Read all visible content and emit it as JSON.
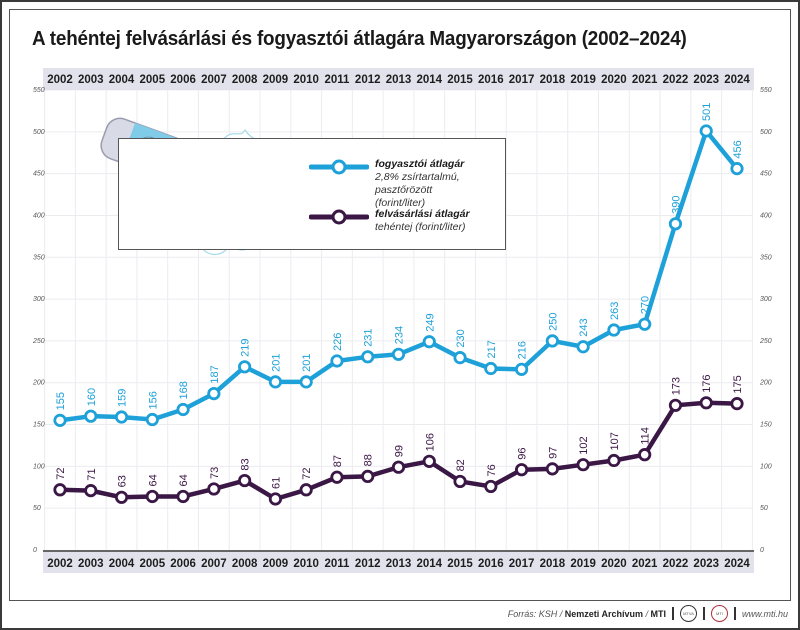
{
  "title": "A tehéntej felvásárlási és fogyasztói átlagára Magyarországon (2002–2024)",
  "legend": {
    "consumer": {
      "name": "fogyasztói átlagár",
      "desc1": "2,8% zsírtartalmú, pasztőrözött",
      "desc2": "(forint/liter)"
    },
    "purchase": {
      "name": "felvásárlási átlagár",
      "desc1": "tehéntej (forint/liter)"
    }
  },
  "footer": {
    "source_prefix": "Forrás: KSH / ",
    "source_bold1": "Nemzeti Archívum",
    "source_mid": " / ",
    "source_bold2": "MTI",
    "logo1": "MTVA",
    "logo2": "MTI",
    "website": "www.mti.hu"
  },
  "colors": {
    "consumer": "#1ea1d9",
    "purchase": "#3b1745",
    "year_band": "#e2e2ec",
    "grid": "#ececf0"
  },
  "chart_data": {
    "type": "line",
    "title": "A tehéntej felvásárlási és fogyasztói átlagára Magyarországon (2002–2024)",
    "xlabel": "",
    "ylabel": "forint/liter",
    "x": [
      "2002",
      "2003",
      "2004",
      "2005",
      "2006",
      "2007",
      "2008",
      "2009",
      "2010",
      "2011",
      "2012",
      "2013",
      "2014",
      "2015",
      "2016",
      "2017",
      "2018",
      "2019",
      "2020",
      "2021",
      "2022",
      "2023",
      "2024"
    ],
    "ylim": [
      0,
      550
    ],
    "yticks": [
      0,
      50,
      100,
      150,
      200,
      250,
      300,
      350,
      400,
      450,
      500,
      550
    ],
    "grid": true,
    "legend_position": "top-left",
    "series": [
      {
        "name": "fogyasztói átlagár",
        "values": [
          155,
          160,
          159,
          156,
          168,
          187,
          219,
          201,
          201,
          226,
          231,
          234,
          249,
          230,
          217,
          216,
          250,
          243,
          263,
          270,
          390,
          501,
          456
        ]
      },
      {
        "name": "felvásárlási átlagár",
        "values": [
          72,
          71,
          63,
          64,
          64,
          73,
          83,
          61,
          72,
          87,
          88,
          99,
          106,
          82,
          76,
          96,
          97,
          102,
          107,
          114,
          173,
          176,
          175
        ]
      }
    ]
  }
}
